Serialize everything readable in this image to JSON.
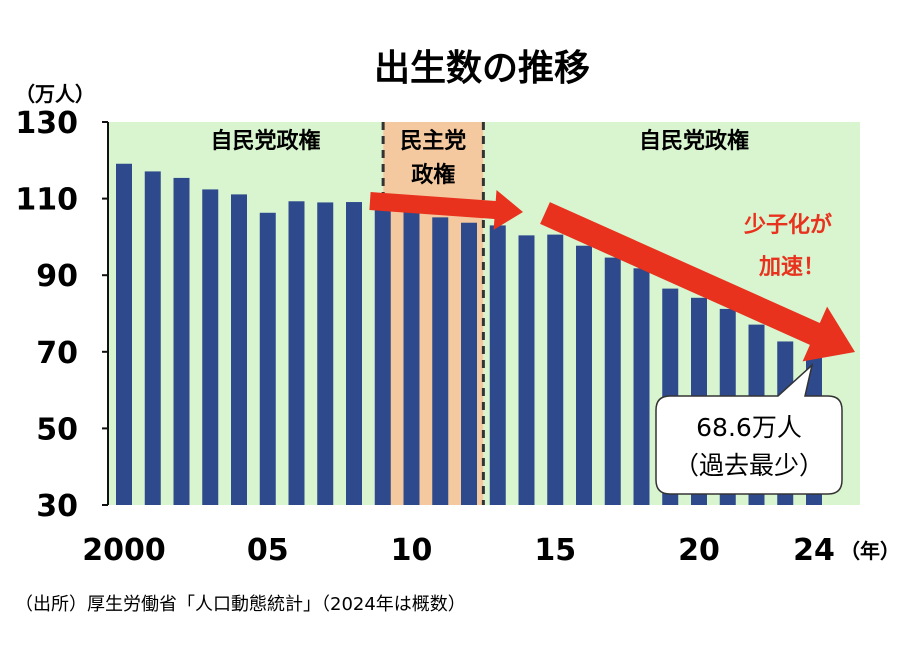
{
  "chart_data": {
    "type": "bar",
    "title": "出生数の推移",
    "y_unit_label": "（万人）",
    "x_unit_label": "（年）",
    "ylim": [
      30,
      130
    ],
    "y_ticks": [
      "130",
      "110",
      "90",
      "70",
      "50",
      "30"
    ],
    "y_tick_values": [
      130,
      110,
      90,
      70,
      50,
      30
    ],
    "x_tick_labels": [
      {
        "label": "2000",
        "year": 2000
      },
      {
        "label": "05",
        "year": 2005
      },
      {
        "label": "10",
        "year": 2010
      },
      {
        "label": "15",
        "year": 2015
      },
      {
        "label": "20",
        "year": 2020
      },
      {
        "label": "24",
        "year": 2024
      }
    ],
    "categories": [
      "2000",
      "2001",
      "2002",
      "2003",
      "2004",
      "2005",
      "2006",
      "2007",
      "2008",
      "2009",
      "2010",
      "2011",
      "2012",
      "2013",
      "2014",
      "2015",
      "2016",
      "2017",
      "2018",
      "2019",
      "2020",
      "2021",
      "2022",
      "2023",
      "2024"
    ],
    "values": [
      119.1,
      117.1,
      115.4,
      112.4,
      111.1,
      106.3,
      109.3,
      109.0,
      109.1,
      107.0,
      107.1,
      105.1,
      103.7,
      103.0,
      100.4,
      100.6,
      97.7,
      94.6,
      91.8,
      86.5,
      84.1,
      81.2,
      77.1,
      72.7,
      68.6
    ],
    "bar_color": "#2e4a8c",
    "periods": [
      {
        "label": "自民党政権",
        "from": 2000,
        "to": 2009,
        "color": "#d9f5d0"
      },
      {
        "label_line1": "民主党",
        "label_line2": "政権",
        "from": 2009,
        "to": 2012,
        "color": "#f5c9a0"
      },
      {
        "label": "自民党政権",
        "from": 2012,
        "to": 2024,
        "color": "#d9f5d0"
      }
    ],
    "annotation": {
      "line1": "少子化が",
      "line2": "加速！",
      "color": "#e8321e"
    },
    "callout": {
      "line1": "68.6万人",
      "line2": "（過去最少）"
    }
  },
  "source": "（出所）厚生労働省「人口動態統計」（2024年は概数）"
}
